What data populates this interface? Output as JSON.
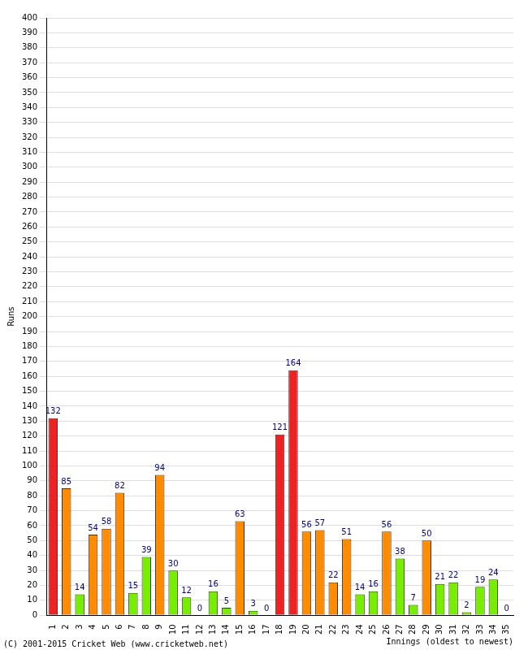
{
  "chart_data": {
    "type": "bar",
    "categories": [
      "1",
      "2",
      "3",
      "4",
      "5",
      "6",
      "7",
      "8",
      "9",
      "10",
      "11",
      "12",
      "13",
      "14",
      "15",
      "16",
      "17",
      "18",
      "19",
      "20",
      "21",
      "22",
      "23",
      "24",
      "25",
      "26",
      "27",
      "28",
      "29",
      "30",
      "31",
      "32",
      "33",
      "34",
      "35"
    ],
    "values": [
      132,
      85,
      14,
      54,
      58,
      82,
      15,
      39,
      94,
      30,
      12,
      0,
      16,
      5,
      63,
      3,
      0,
      121,
      164,
      56,
      57,
      22,
      51,
      14,
      16,
      56,
      38,
      7,
      50,
      21,
      22,
      2,
      19,
      24,
      0
    ],
    "colors": [
      "#ee2222",
      "#ff8c00",
      "#77ee00",
      "#ff8c00",
      "#ff8c00",
      "#ff8c00",
      "#77ee00",
      "#77ee00",
      "#ff8c00",
      "#77ee00",
      "#77ee00",
      "#77ee00",
      "#77ee00",
      "#77ee00",
      "#ff8c00",
      "#77ee00",
      "#77ee00",
      "#ee2222",
      "#ee2222",
      "#ff8c00",
      "#ff8c00",
      "#ff8c00",
      "#ff8c00",
      "#77ee00",
      "#77ee00",
      "#ff8c00",
      "#77ee00",
      "#77ee00",
      "#ff8c00",
      "#77ee00",
      "#77ee00",
      "#77ee00",
      "#77ee00",
      "#77ee00",
      "#77ee00"
    ],
    "ylim": [
      0,
      400
    ],
    "yticks": [
      0,
      10,
      20,
      30,
      40,
      50,
      60,
      70,
      80,
      90,
      100,
      110,
      120,
      130,
      140,
      150,
      160,
      170,
      180,
      190,
      200,
      210,
      220,
      230,
      240,
      250,
      260,
      270,
      280,
      290,
      300,
      310,
      320,
      330,
      340,
      350,
      360,
      370,
      380,
      390,
      400
    ],
    "grid": true,
    "data_labels": true,
    "x_label": "Innings (oldest to newest)",
    "y_label": "Runs",
    "annotations": [
      "(C) 2001-2015 Cricket Web (www.cricketweb.net)"
    ]
  }
}
